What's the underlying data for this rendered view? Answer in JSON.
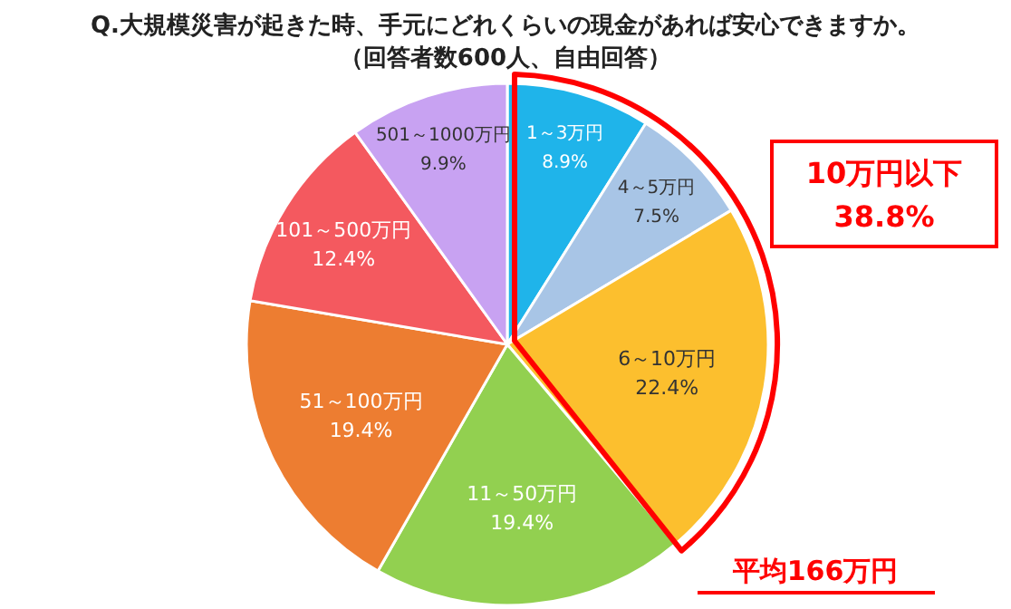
{
  "chart_data": {
    "type": "pie",
    "title": "Q.大規模災害が起きた時、手元にどれくらいの現金があれば安心できますか。",
    "subtitle": "（回答者数600人、自由回答）",
    "categories": [
      "1～3万円",
      "4～5万円",
      "6～10万円",
      "11～50万円",
      "51～100万円",
      "101～500万円",
      "501～1000万円"
    ],
    "values": [
      8.9,
      7.5,
      22.4,
      19.4,
      19.4,
      12.4,
      9.9
    ],
    "colors": [
      "#1fb4ea",
      "#a8c5e6",
      "#fcbf2e",
      "#92d050",
      "#ed7d31",
      "#f4595f",
      "#c8a2f2"
    ],
    "value_labels": [
      "8.9%",
      "7.5%",
      "22.4%",
      "19.4%",
      "19.4%",
      "12.4%",
      "9.9%"
    ],
    "annotations": [
      "10万円以下\n38.8%",
      "平均166万円"
    ]
  }
}
